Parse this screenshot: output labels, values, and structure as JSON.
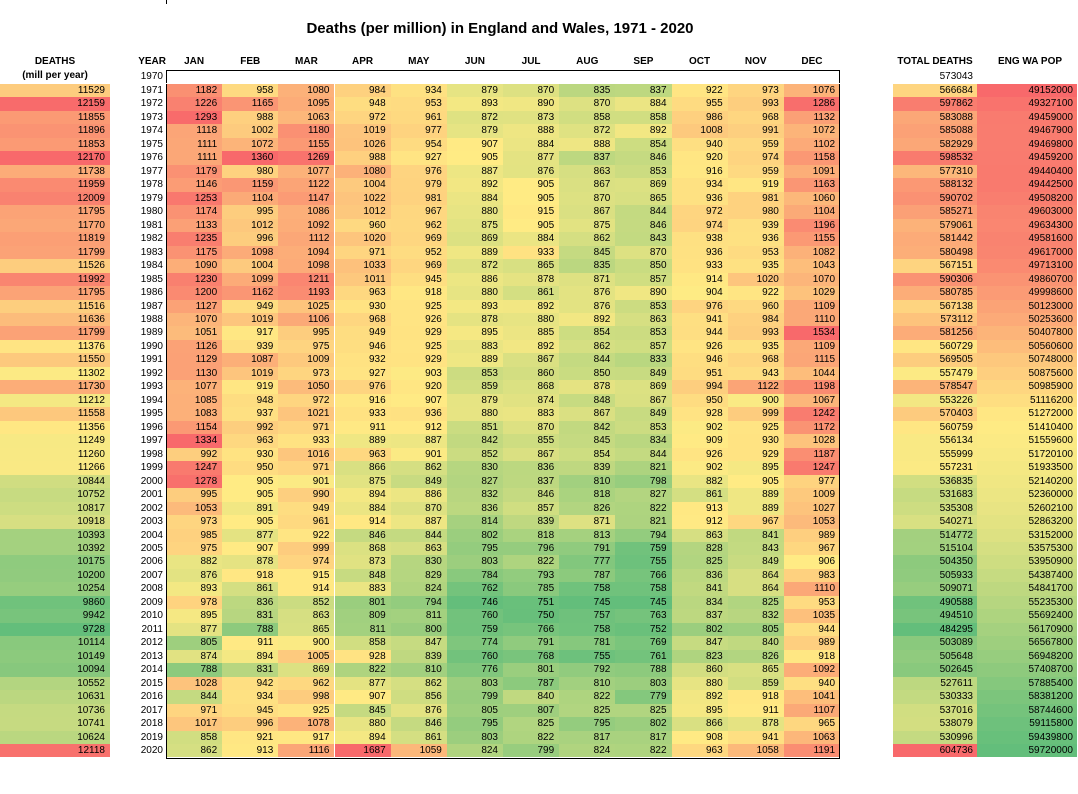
{
  "title": "Deaths (per million) in England and Wales, 1971 - 2020",
  "headers": {
    "deaths": "DEATHS",
    "deaths_sub": "(mill per year)",
    "year": "YEAR",
    "months": [
      "JAN",
      "FEB",
      "MAR",
      "APR",
      "MAY",
      "JUN",
      "JUL",
      "AUG",
      "SEP",
      "OCT",
      "NOV",
      "DEC"
    ],
    "total": "TOTAL DEATHS",
    "pop": "ENG WA POP"
  },
  "first_row": {
    "year": "1970",
    "total": "573043"
  },
  "rows": [
    {
      "d": "11529",
      "y": "1971",
      "m": [
        "1182",
        "958",
        "1080",
        "984",
        "934",
        "879",
        "870",
        "835",
        "837",
        "922",
        "973",
        "1076"
      ],
      "t": "566684",
      "p": "49152000"
    },
    {
      "d": "12159",
      "y": "1972",
      "m": [
        "1226",
        "1165",
        "1095",
        "948",
        "953",
        "893",
        "890",
        "870",
        "884",
        "955",
        "993",
        "1286"
      ],
      "t": "597862",
      "p": "49327100"
    },
    {
      "d": "11855",
      "y": "1973",
      "m": [
        "1293",
        "988",
        "1063",
        "972",
        "961",
        "872",
        "873",
        "858",
        "858",
        "986",
        "968",
        "1132"
      ],
      "t": "583088",
      "p": "49459000"
    },
    {
      "d": "11896",
      "y": "1974",
      "m": [
        "1118",
        "1002",
        "1180",
        "1019",
        "977",
        "879",
        "888",
        "872",
        "892",
        "1008",
        "991",
        "1072"
      ],
      "t": "585088",
      "p": "49467900"
    },
    {
      "d": "11853",
      "y": "1975",
      "m": [
        "1111",
        "1072",
        "1155",
        "1026",
        "954",
        "907",
        "884",
        "888",
        "854",
        "940",
        "959",
        "1102"
      ],
      "t": "582929",
      "p": "49469800"
    },
    {
      "d": "12170",
      "y": "1976",
      "m": [
        "1111",
        "1360",
        "1269",
        "988",
        "927",
        "905",
        "877",
        "837",
        "846",
        "920",
        "974",
        "1158"
      ],
      "t": "598532",
      "p": "49459200"
    },
    {
      "d": "11738",
      "y": "1977",
      "m": [
        "1179",
        "980",
        "1077",
        "1080",
        "976",
        "887",
        "876",
        "863",
        "853",
        "916",
        "959",
        "1091"
      ],
      "t": "577310",
      "p": "49440400"
    },
    {
      "d": "11959",
      "y": "1978",
      "m": [
        "1146",
        "1159",
        "1122",
        "1004",
        "979",
        "892",
        "905",
        "867",
        "869",
        "934",
        "919",
        "1163"
      ],
      "t": "588132",
      "p": "49442500"
    },
    {
      "d": "12009",
      "y": "1979",
      "m": [
        "1253",
        "1104",
        "1147",
        "1022",
        "981",
        "884",
        "905",
        "870",
        "865",
        "936",
        "981",
        "1060"
      ],
      "t": "590702",
      "p": "49508200"
    },
    {
      "d": "11795",
      "y": "1980",
      "m": [
        "1174",
        "995",
        "1086",
        "1012",
        "967",
        "880",
        "915",
        "867",
        "844",
        "972",
        "980",
        "1104"
      ],
      "t": "585271",
      "p": "49603000"
    },
    {
      "d": "11770",
      "y": "1981",
      "m": [
        "1133",
        "1012",
        "1092",
        "960",
        "962",
        "875",
        "905",
        "875",
        "846",
        "974",
        "939",
        "1196"
      ],
      "t": "579061",
      "p": "49634300"
    },
    {
      "d": "11819",
      "y": "1982",
      "m": [
        "1235",
        "996",
        "1112",
        "1020",
        "969",
        "869",
        "884",
        "862",
        "843",
        "938",
        "936",
        "1155"
      ],
      "t": "581442",
      "p": "49581600"
    },
    {
      "d": "11799",
      "y": "1983",
      "m": [
        "1175",
        "1098",
        "1094",
        "971",
        "952",
        "889",
        "933",
        "845",
        "870",
        "936",
        "953",
        "1082"
      ],
      "t": "580498",
      "p": "49617000"
    },
    {
      "d": "11526",
      "y": "1984",
      "m": [
        "1090",
        "1004",
        "1098",
        "1033",
        "969",
        "872",
        "865",
        "835",
        "850",
        "933",
        "935",
        "1043"
      ],
      "t": "567151",
      "p": "49713100"
    },
    {
      "d": "11992",
      "y": "1985",
      "m": [
        "1230",
        "1099",
        "1211",
        "1011",
        "945",
        "886",
        "878",
        "871",
        "857",
        "914",
        "1020",
        "1070"
      ],
      "t": "590306",
      "p": "49860700"
    },
    {
      "d": "11795",
      "y": "1986",
      "m": [
        "1200",
        "1162",
        "1193",
        "963",
        "918",
        "880",
        "861",
        "876",
        "890",
        "904",
        "922",
        "1029"
      ],
      "t": "580785",
      "p": "49998600"
    },
    {
      "d": "11516",
      "y": "1987",
      "m": [
        "1127",
        "949",
        "1025",
        "930",
        "925",
        "893",
        "892",
        "876",
        "853",
        "976",
        "960",
        "1109"
      ],
      "t": "567138",
      "p": "50123000"
    },
    {
      "d": "11636",
      "y": "1988",
      "m": [
        "1070",
        "1019",
        "1106",
        "968",
        "926",
        "878",
        "880",
        "892",
        "863",
        "941",
        "984",
        "1110"
      ],
      "t": "573112",
      "p": "50253600"
    },
    {
      "d": "11799",
      "y": "1989",
      "m": [
        "1051",
        "917",
        "995",
        "949",
        "929",
        "895",
        "885",
        "854",
        "853",
        "944",
        "993",
        "1534"
      ],
      "t": "581256",
      "p": "50407800"
    },
    {
      "d": "11376",
      "y": "1990",
      "m": [
        "1126",
        "939",
        "975",
        "946",
        "925",
        "883",
        "892",
        "862",
        "857",
        "926",
        "935",
        "1109"
      ],
      "t": "560729",
      "p": "50560600"
    },
    {
      "d": "11550",
      "y": "1991",
      "m": [
        "1129",
        "1087",
        "1009",
        "932",
        "929",
        "889",
        "867",
        "844",
        "833",
        "946",
        "968",
        "1115"
      ],
      "t": "569505",
      "p": "50748000"
    },
    {
      "d": "11302",
      "y": "1992",
      "m": [
        "1130",
        "1019",
        "973",
        "927",
        "903",
        "853",
        "860",
        "850",
        "849",
        "951",
        "943",
        "1044"
      ],
      "t": "557479",
      "p": "50875600"
    },
    {
      "d": "11730",
      "y": "1993",
      "m": [
        "1077",
        "919",
        "1050",
        "976",
        "920",
        "859",
        "868",
        "878",
        "869",
        "994",
        "1122",
        "1198"
      ],
      "t": "578547",
      "p": "50985900"
    },
    {
      "d": "11212",
      "y": "1994",
      "m": [
        "1085",
        "948",
        "972",
        "916",
        "907",
        "879",
        "874",
        "848",
        "867",
        "950",
        "900",
        "1067"
      ],
      "t": "553226",
      "p": "51116200"
    },
    {
      "d": "11558",
      "y": "1995",
      "m": [
        "1083",
        "937",
        "1021",
        "933",
        "936",
        "880",
        "883",
        "867",
        "849",
        "928",
        "999",
        "1242"
      ],
      "t": "570403",
      "p": "51272000"
    },
    {
      "d": "11356",
      "y": "1996",
      "m": [
        "1154",
        "992",
        "971",
        "911",
        "912",
        "851",
        "870",
        "842",
        "853",
        "902",
        "925",
        "1172"
      ],
      "t": "560759",
      "p": "51410400"
    },
    {
      "d": "11249",
      "y": "1997",
      "m": [
        "1334",
        "963",
        "933",
        "889",
        "887",
        "842",
        "855",
        "845",
        "834",
        "909",
        "930",
        "1028"
      ],
      "t": "556134",
      "p": "51559600"
    },
    {
      "d": "11260",
      "y": "1998",
      "m": [
        "992",
        "930",
        "1016",
        "963",
        "901",
        "852",
        "867",
        "854",
        "844",
        "926",
        "929",
        "1187"
      ],
      "t": "555999",
      "p": "51720100"
    },
    {
      "d": "11266",
      "y": "1999",
      "m": [
        "1247",
        "950",
        "971",
        "866",
        "862",
        "830",
        "836",
        "839",
        "821",
        "902",
        "895",
        "1247"
      ],
      "t": "557231",
      "p": "51933500"
    },
    {
      "d": "10844",
      "y": "2000",
      "m": [
        "1278",
        "905",
        "901",
        "875",
        "849",
        "827",
        "837",
        "810",
        "798",
        "882",
        "905",
        "977"
      ],
      "t": "536835",
      "p": "52140200"
    },
    {
      "d": "10752",
      "y": "2001",
      "m": [
        "995",
        "905",
        "990",
        "894",
        "886",
        "832",
        "846",
        "818",
        "827",
        "861",
        "889",
        "1009"
      ],
      "t": "531683",
      "p": "52360000"
    },
    {
      "d": "10817",
      "y": "2002",
      "m": [
        "1053",
        "891",
        "949",
        "884",
        "870",
        "836",
        "857",
        "826",
        "822",
        "913",
        "889",
        "1027"
      ],
      "t": "535308",
      "p": "52602100"
    },
    {
      "d": "10918",
      "y": "2003",
      "m": [
        "973",
        "905",
        "961",
        "914",
        "887",
        "814",
        "839",
        "871",
        "821",
        "912",
        "967",
        "1053"
      ],
      "t": "540271",
      "p": "52863200"
    },
    {
      "d": "10393",
      "y": "2004",
      "m": [
        "985",
        "877",
        "922",
        "846",
        "844",
        "802",
        "818",
        "813",
        "794",
        "863",
        "841",
        "989"
      ],
      "t": "514772",
      "p": "53152000"
    },
    {
      "d": "10392",
      "y": "2005",
      "m": [
        "975",
        "907",
        "999",
        "868",
        "863",
        "795",
        "796",
        "791",
        "759",
        "828",
        "843",
        "967"
      ],
      "t": "515104",
      "p": "53575300"
    },
    {
      "d": "10175",
      "y": "2006",
      "m": [
        "882",
        "878",
        "974",
        "873",
        "830",
        "803",
        "822",
        "777",
        "755",
        "825",
        "849",
        "906"
      ],
      "t": "504350",
      "p": "53950900"
    },
    {
      "d": "10200",
      "y": "2007",
      "m": [
        "876",
        "918",
        "915",
        "848",
        "829",
        "784",
        "793",
        "787",
        "766",
        "836",
        "864",
        "983"
      ],
      "t": "505933",
      "p": "54387400"
    },
    {
      "d": "10254",
      "y": "2008",
      "m": [
        "893",
        "861",
        "914",
        "883",
        "824",
        "762",
        "785",
        "758",
        "758",
        "841",
        "864",
        "1110"
      ],
      "t": "509071",
      "p": "54841700"
    },
    {
      "d": "9860",
      "y": "2009",
      "m": [
        "978",
        "836",
        "852",
        "801",
        "794",
        "746",
        "751",
        "745",
        "745",
        "834",
        "825",
        "953"
      ],
      "t": "490588",
      "p": "55235300"
    },
    {
      "d": "9942",
      "y": "2010",
      "m": [
        "895",
        "831",
        "863",
        "809",
        "811",
        "760",
        "750",
        "757",
        "763",
        "837",
        "832",
        "1035"
      ],
      "t": "494510",
      "p": "55692400"
    },
    {
      "d": "9728",
      "y": "2011",
      "m": [
        "877",
        "788",
        "865",
        "811",
        "800",
        "759",
        "766",
        "758",
        "752",
        "802",
        "805",
        "944"
      ],
      "t": "484295",
      "p": "56170900"
    },
    {
      "d": "10114",
      "y": "2012",
      "m": [
        "805",
        "911",
        "900",
        "858",
        "847",
        "774",
        "791",
        "781",
        "769",
        "847",
        "840",
        "989"
      ],
      "t": "503089",
      "p": "56567800"
    },
    {
      "d": "10149",
      "y": "2013",
      "m": [
        "874",
        "894",
        "1005",
        "928",
        "839",
        "760",
        "768",
        "755",
        "761",
        "823",
        "826",
        "918"
      ],
      "t": "505648",
      "p": "56948200"
    },
    {
      "d": "10094",
      "y": "2014",
      "m": [
        "788",
        "831",
        "869",
        "822",
        "810",
        "776",
        "801",
        "792",
        "788",
        "860",
        "865",
        "1092"
      ],
      "t": "502645",
      "p": "57408700"
    },
    {
      "d": "10552",
      "y": "2015",
      "m": [
        "1028",
        "942",
        "962",
        "877",
        "862",
        "803",
        "787",
        "810",
        "803",
        "880",
        "859",
        "940"
      ],
      "t": "527611",
      "p": "57885400"
    },
    {
      "d": "10631",
      "y": "2016",
      "m": [
        "844",
        "934",
        "998",
        "907",
        "856",
        "799",
        "840",
        "822",
        "779",
        "892",
        "918",
        "1041"
      ],
      "t": "530333",
      "p": "58381200"
    },
    {
      "d": "10736",
      "y": "2017",
      "m": [
        "971",
        "945",
        "925",
        "845",
        "876",
        "805",
        "807",
        "825",
        "825",
        "895",
        "911",
        "1107"
      ],
      "t": "537016",
      "p": "58744600"
    },
    {
      "d": "10741",
      "y": "2018",
      "m": [
        "1017",
        "996",
        "1078",
        "880",
        "846",
        "795",
        "825",
        "795",
        "802",
        "866",
        "878",
        "965"
      ],
      "t": "538079",
      "p": "59115800"
    },
    {
      "d": "10624",
      "y": "2019",
      "m": [
        "858",
        "921",
        "917",
        "894",
        "861",
        "803",
        "822",
        "817",
        "817",
        "908",
        "941",
        "1063"
      ],
      "t": "530996",
      "p": "59439800"
    },
    {
      "d": "12118",
      "y": "2020",
      "m": [
        "862",
        "913",
        "1116",
        "1687",
        "1059",
        "824",
        "799",
        "824",
        "822",
        "963",
        "1058",
        "1191"
      ],
      "t": "604736",
      "p": "59720000"
    }
  ],
  "colors": {
    "low": "#63be7b",
    "mid": "#ffeb84",
    "high": "#f8696b"
  }
}
